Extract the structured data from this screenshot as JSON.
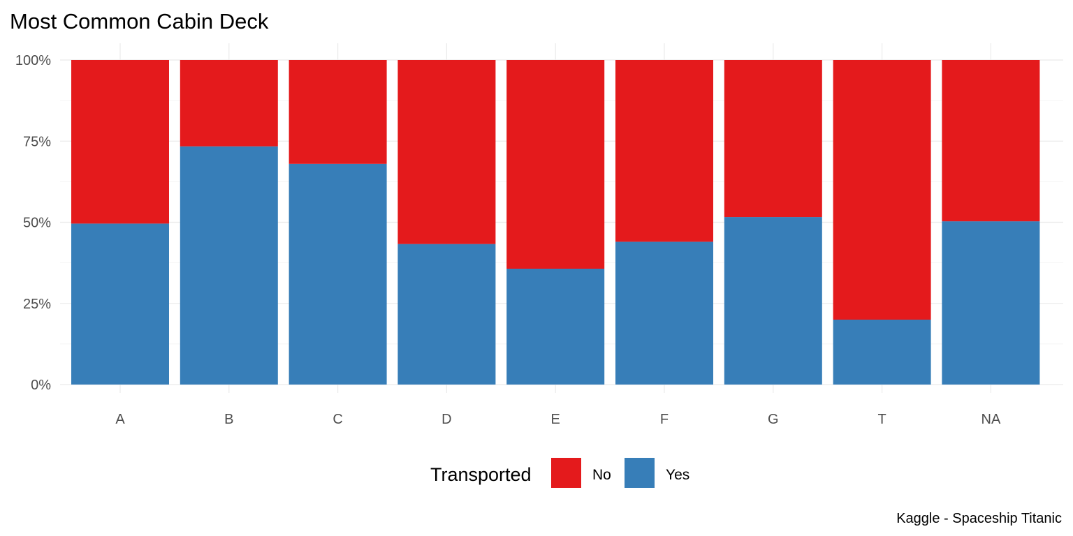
{
  "chart_data": {
    "type": "bar",
    "stacked": "percent",
    "title": "Most Common Cabin Deck",
    "xlabel": "",
    "ylabel": "",
    "caption": "Kaggle - Spaceship Titanic",
    "categories": [
      "A",
      "B",
      "C",
      "D",
      "E",
      "F",
      "G",
      "T",
      "NA"
    ],
    "ylim": [
      0,
      1
    ],
    "yticks": [
      0,
      0.25,
      0.5,
      0.75,
      1
    ],
    "ytick_labels": [
      "0%",
      "25%",
      "50%",
      "75%",
      "100%"
    ],
    "grid": true,
    "legend": {
      "title": "Transported",
      "position": "bottom"
    },
    "series": [
      {
        "name": "No",
        "color": "#e41a1c",
        "values": [
          0.504,
          0.266,
          0.32,
          0.567,
          0.643,
          0.56,
          0.484,
          0.8,
          0.497
        ]
      },
      {
        "name": "Yes",
        "color": "#377eb8",
        "values": [
          0.496,
          0.734,
          0.68,
          0.433,
          0.357,
          0.44,
          0.516,
          0.2,
          0.503
        ]
      }
    ]
  }
}
